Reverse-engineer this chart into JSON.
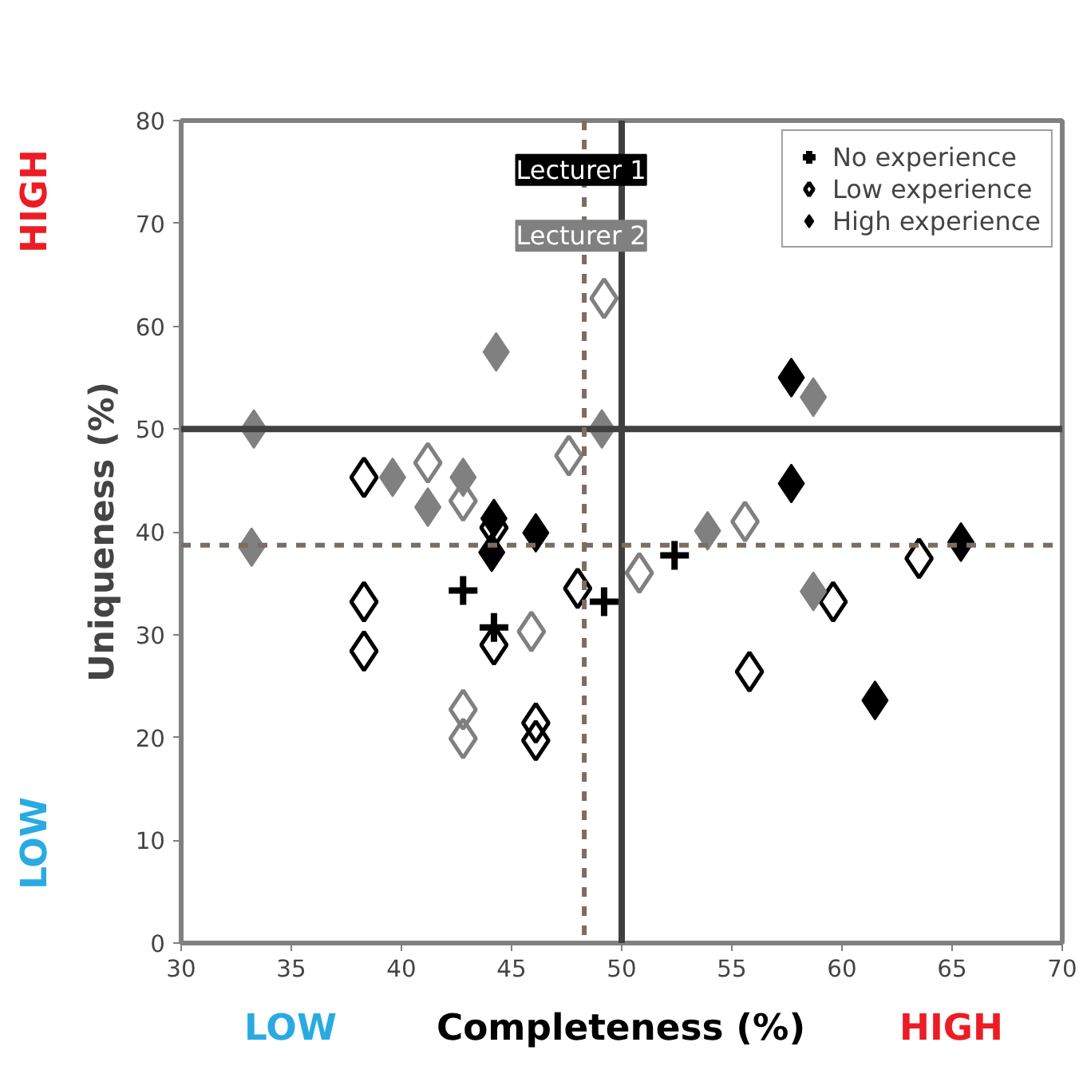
{
  "chart_data": {
    "type": "scatter",
    "xlabel": "Completeness (%)",
    "ylabel": "Uniqueness (%)",
    "xlim": [
      30,
      70
    ],
    "ylim": [
      0,
      80
    ],
    "xticks": [
      30,
      35,
      40,
      45,
      50,
      55,
      60,
      65,
      70
    ],
    "yticks": [
      0,
      10,
      20,
      30,
      40,
      50,
      60,
      70,
      80
    ],
    "grid": false,
    "legend": "top right",
    "series": [
      {
        "name": "No experience",
        "color": "#000000",
        "marker": "cross",
        "x": [
          42.8,
          44.2,
          49.2,
          52.4
        ],
        "values": [
          34.3,
          30.7,
          33.2,
          37.7
        ]
      },
      {
        "name": "Low experience",
        "color": "#000000",
        "marker": "diamond-open",
        "x": [
          38.3,
          44.2,
          38.3,
          38.3,
          44.2,
          48.0,
          46.1,
          46.1,
          63.5,
          59.6,
          55.8
        ],
        "values": [
          45.3,
          40.4,
          33.2,
          28.4,
          29.0,
          34.5,
          21.4,
          19.7,
          37.4,
          33.2,
          26.4
        ]
      },
      {
        "name": "High experience",
        "color": "#000000",
        "marker": "diamond",
        "x": [
          44.2,
          46.1,
          44.1,
          57.7,
          57.7,
          65.4,
          61.5
        ],
        "values": [
          41.3,
          39.9,
          38.0,
          55.0,
          44.7,
          39.0,
          23.6
        ]
      },
      {
        "color": "#808080",
        "marker": "diamond-open",
        "x": [
          49.2,
          47.6,
          41.2,
          42.8,
          45.9,
          42.8,
          42.8,
          55.6,
          50.8
        ],
        "values": [
          62.7,
          47.4,
          46.7,
          43.0,
          30.3,
          22.7,
          19.9,
          41.0,
          36.0
        ]
      },
      {
        "color": "#808080",
        "marker": "diamond",
        "x": [
          44.3,
          33.3,
          49.1,
          39.6,
          42.8,
          41.2,
          33.2,
          58.7,
          53.9,
          58.7
        ],
        "values": [
          57.5,
          50.0,
          50.0,
          45.3,
          45.3,
          42.4,
          38.5,
          53.1,
          40.1,
          34.2
        ]
      }
    ],
    "ref_lines": [
      {
        "axis": "y",
        "value": 50,
        "color": "#404040",
        "line_style": "solid"
      },
      {
        "axis": "x",
        "value": 50,
        "color": "#404040",
        "line_style": "solid"
      },
      {
        "axis": "y",
        "value": 38.7,
        "color": "#7a6e62",
        "line_style": "dashed"
      },
      {
        "axis": "x",
        "value": 48.3,
        "color": "#7a6e62",
        "line_style": "dashed"
      }
    ],
    "annotations": [
      "Lecturer 1",
      "Lecturer 2",
      "LOW",
      "HIGH",
      "LOW",
      "HIGH"
    ]
  }
}
